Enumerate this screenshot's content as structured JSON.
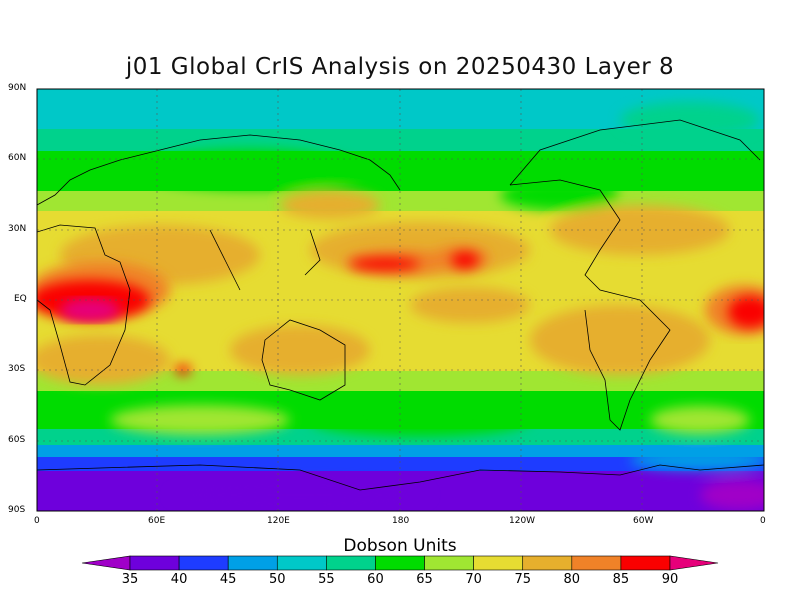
{
  "title": "j01 Global CrIS Analysis on 20250430 Layer 8",
  "lat_labels": [
    "90N",
    "60N",
    "30N",
    "EQ",
    "30S",
    "60S",
    "90S"
  ],
  "lon_labels": [
    "0",
    "60E",
    "120E",
    "180",
    "120W",
    "60W",
    "0"
  ],
  "colorbar": {
    "title": "Dobson Units",
    "ticks": [
      "35",
      "40",
      "45",
      "50",
      "55",
      "60",
      "65",
      "70",
      "75",
      "80",
      "85",
      "90"
    ],
    "colors": [
      "#a000c8",
      "#6e00dc",
      "#1e3cff",
      "#00a0e6",
      "#00c8c8",
      "#00d28c",
      "#00dc00",
      "#a0e632",
      "#e6dc32",
      "#e6af2d",
      "#f08228",
      "#fa0000",
      "#e6007a"
    ]
  }
}
